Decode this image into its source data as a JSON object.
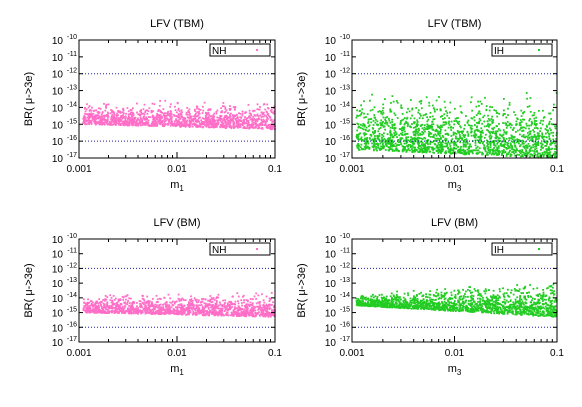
{
  "chart_data": [
    {
      "type": "scatter",
      "title": "LFV (TBM)",
      "xlabel": "m",
      "xsub": "1",
      "ylabel": "BR( μ->3e)",
      "xscale": "log",
      "yscale": "log",
      "xlim": [
        0.001,
        0.1
      ],
      "ylim": [
        1e-17,
        1e-10
      ],
      "xticks": [
        "0.001",
        "0.01",
        "0.1"
      ],
      "yticks": [
        {
          "base": "10",
          "exp": "-10"
        },
        {
          "base": "10",
          "exp": "-11"
        },
        {
          "base": "10",
          "exp": "-12"
        },
        {
          "base": "10",
          "exp": "-13"
        },
        {
          "base": "10",
          "exp": "-14"
        },
        {
          "base": "10",
          "exp": "-15"
        },
        {
          "base": "10",
          "exp": "-16"
        },
        {
          "base": "10",
          "exp": "-17"
        }
      ],
      "legend": {
        "label": "NH",
        "position": "top-right"
      },
      "color": "#ff6ec7",
      "limits": [
        1e-12,
        1e-16
      ],
      "band": {
        "low_start": 1e-15,
        "low_end": 5e-16,
        "high_start": 2.2e-14,
        "high_end": 3.5e-14,
        "x_min": 0.0011,
        "x_max": 0.1,
        "density": 1400
      }
    },
    {
      "type": "scatter",
      "title": "LFV (TBM)",
      "xlabel": "m",
      "xsub": "3",
      "ylabel": "BR( μ->3e)",
      "xscale": "log",
      "yscale": "log",
      "xlim": [
        0.001,
        0.1
      ],
      "ylim": [
        1e-17,
        1e-10
      ],
      "xticks": [
        "0.001",
        "0.01",
        "0.1"
      ],
      "yticks": [
        {
          "base": "10",
          "exp": "-10"
        },
        {
          "base": "10",
          "exp": "-11"
        },
        {
          "base": "10",
          "exp": "-12"
        },
        {
          "base": "10",
          "exp": "-13"
        },
        {
          "base": "10",
          "exp": "-14"
        },
        {
          "base": "10",
          "exp": "-15"
        },
        {
          "base": "10",
          "exp": "-16"
        },
        {
          "base": "10",
          "exp": "-17"
        }
      ],
      "legend": {
        "label": "IH",
        "position": "top-right"
      },
      "color": "#22cc22",
      "limits": [
        1e-12,
        1e-16
      ],
      "band": {
        "low_start": 3e-17,
        "low_end": 1e-17,
        "high_start": 1.3e-13,
        "high_end": 1.6e-13,
        "x_min": 0.0011,
        "x_max": 0.1,
        "density": 1800
      }
    },
    {
      "type": "scatter",
      "title": "LFV (BM)",
      "xlabel": "m",
      "xsub": "1",
      "ylabel": "BR( μ->3e)",
      "xscale": "log",
      "yscale": "log",
      "xlim": [
        0.001,
        0.1
      ],
      "ylim": [
        1e-17,
        1e-10
      ],
      "xticks": [
        "0.001",
        "0.01",
        "0.1"
      ],
      "yticks": [
        {
          "base": "10",
          "exp": "-10"
        },
        {
          "base": "10",
          "exp": "-11"
        },
        {
          "base": "10",
          "exp": "-12"
        },
        {
          "base": "10",
          "exp": "-13"
        },
        {
          "base": "10",
          "exp": "-14"
        },
        {
          "base": "10",
          "exp": "-15"
        },
        {
          "base": "10",
          "exp": "-16"
        },
        {
          "base": "10",
          "exp": "-17"
        }
      ],
      "legend": {
        "label": "NH",
        "position": "top-right"
      },
      "color": "#ff6ec7",
      "limits": [
        1e-12,
        1e-16
      ],
      "band": {
        "low_start": 1e-15,
        "low_end": 5e-16,
        "high_start": 2e-14,
        "high_end": 3.5e-14,
        "x_min": 0.0011,
        "x_max": 0.1,
        "density": 1400
      }
    },
    {
      "type": "scatter",
      "title": "LFV (BM)",
      "xlabel": "m",
      "xsub": "3",
      "ylabel": "BR( μ->3e)",
      "xscale": "log",
      "yscale": "log",
      "xlim": [
        0.001,
        0.1
      ],
      "ylim": [
        1e-17,
        1e-10
      ],
      "xticks": [
        "0.001",
        "0.01",
        "0.1"
      ],
      "yticks": [
        {
          "base": "10",
          "exp": "-10"
        },
        {
          "base": "10",
          "exp": "-11"
        },
        {
          "base": "10",
          "exp": "-12"
        },
        {
          "base": "10",
          "exp": "-13"
        },
        {
          "base": "10",
          "exp": "-14"
        },
        {
          "base": "10",
          "exp": "-15"
        },
        {
          "base": "10",
          "exp": "-16"
        },
        {
          "base": "10",
          "exp": "-17"
        }
      ],
      "legend": {
        "label": "IH",
        "position": "top-right"
      },
      "color": "#22cc22",
      "limits": [
        1e-12,
        1e-16
      ],
      "band": {
        "low_start": 3e-15,
        "low_end": 5e-16,
        "high_start": 2e-14,
        "high_end": 2.5e-13,
        "x_min": 0.0011,
        "x_max": 0.1,
        "density": 1600
      }
    }
  ]
}
